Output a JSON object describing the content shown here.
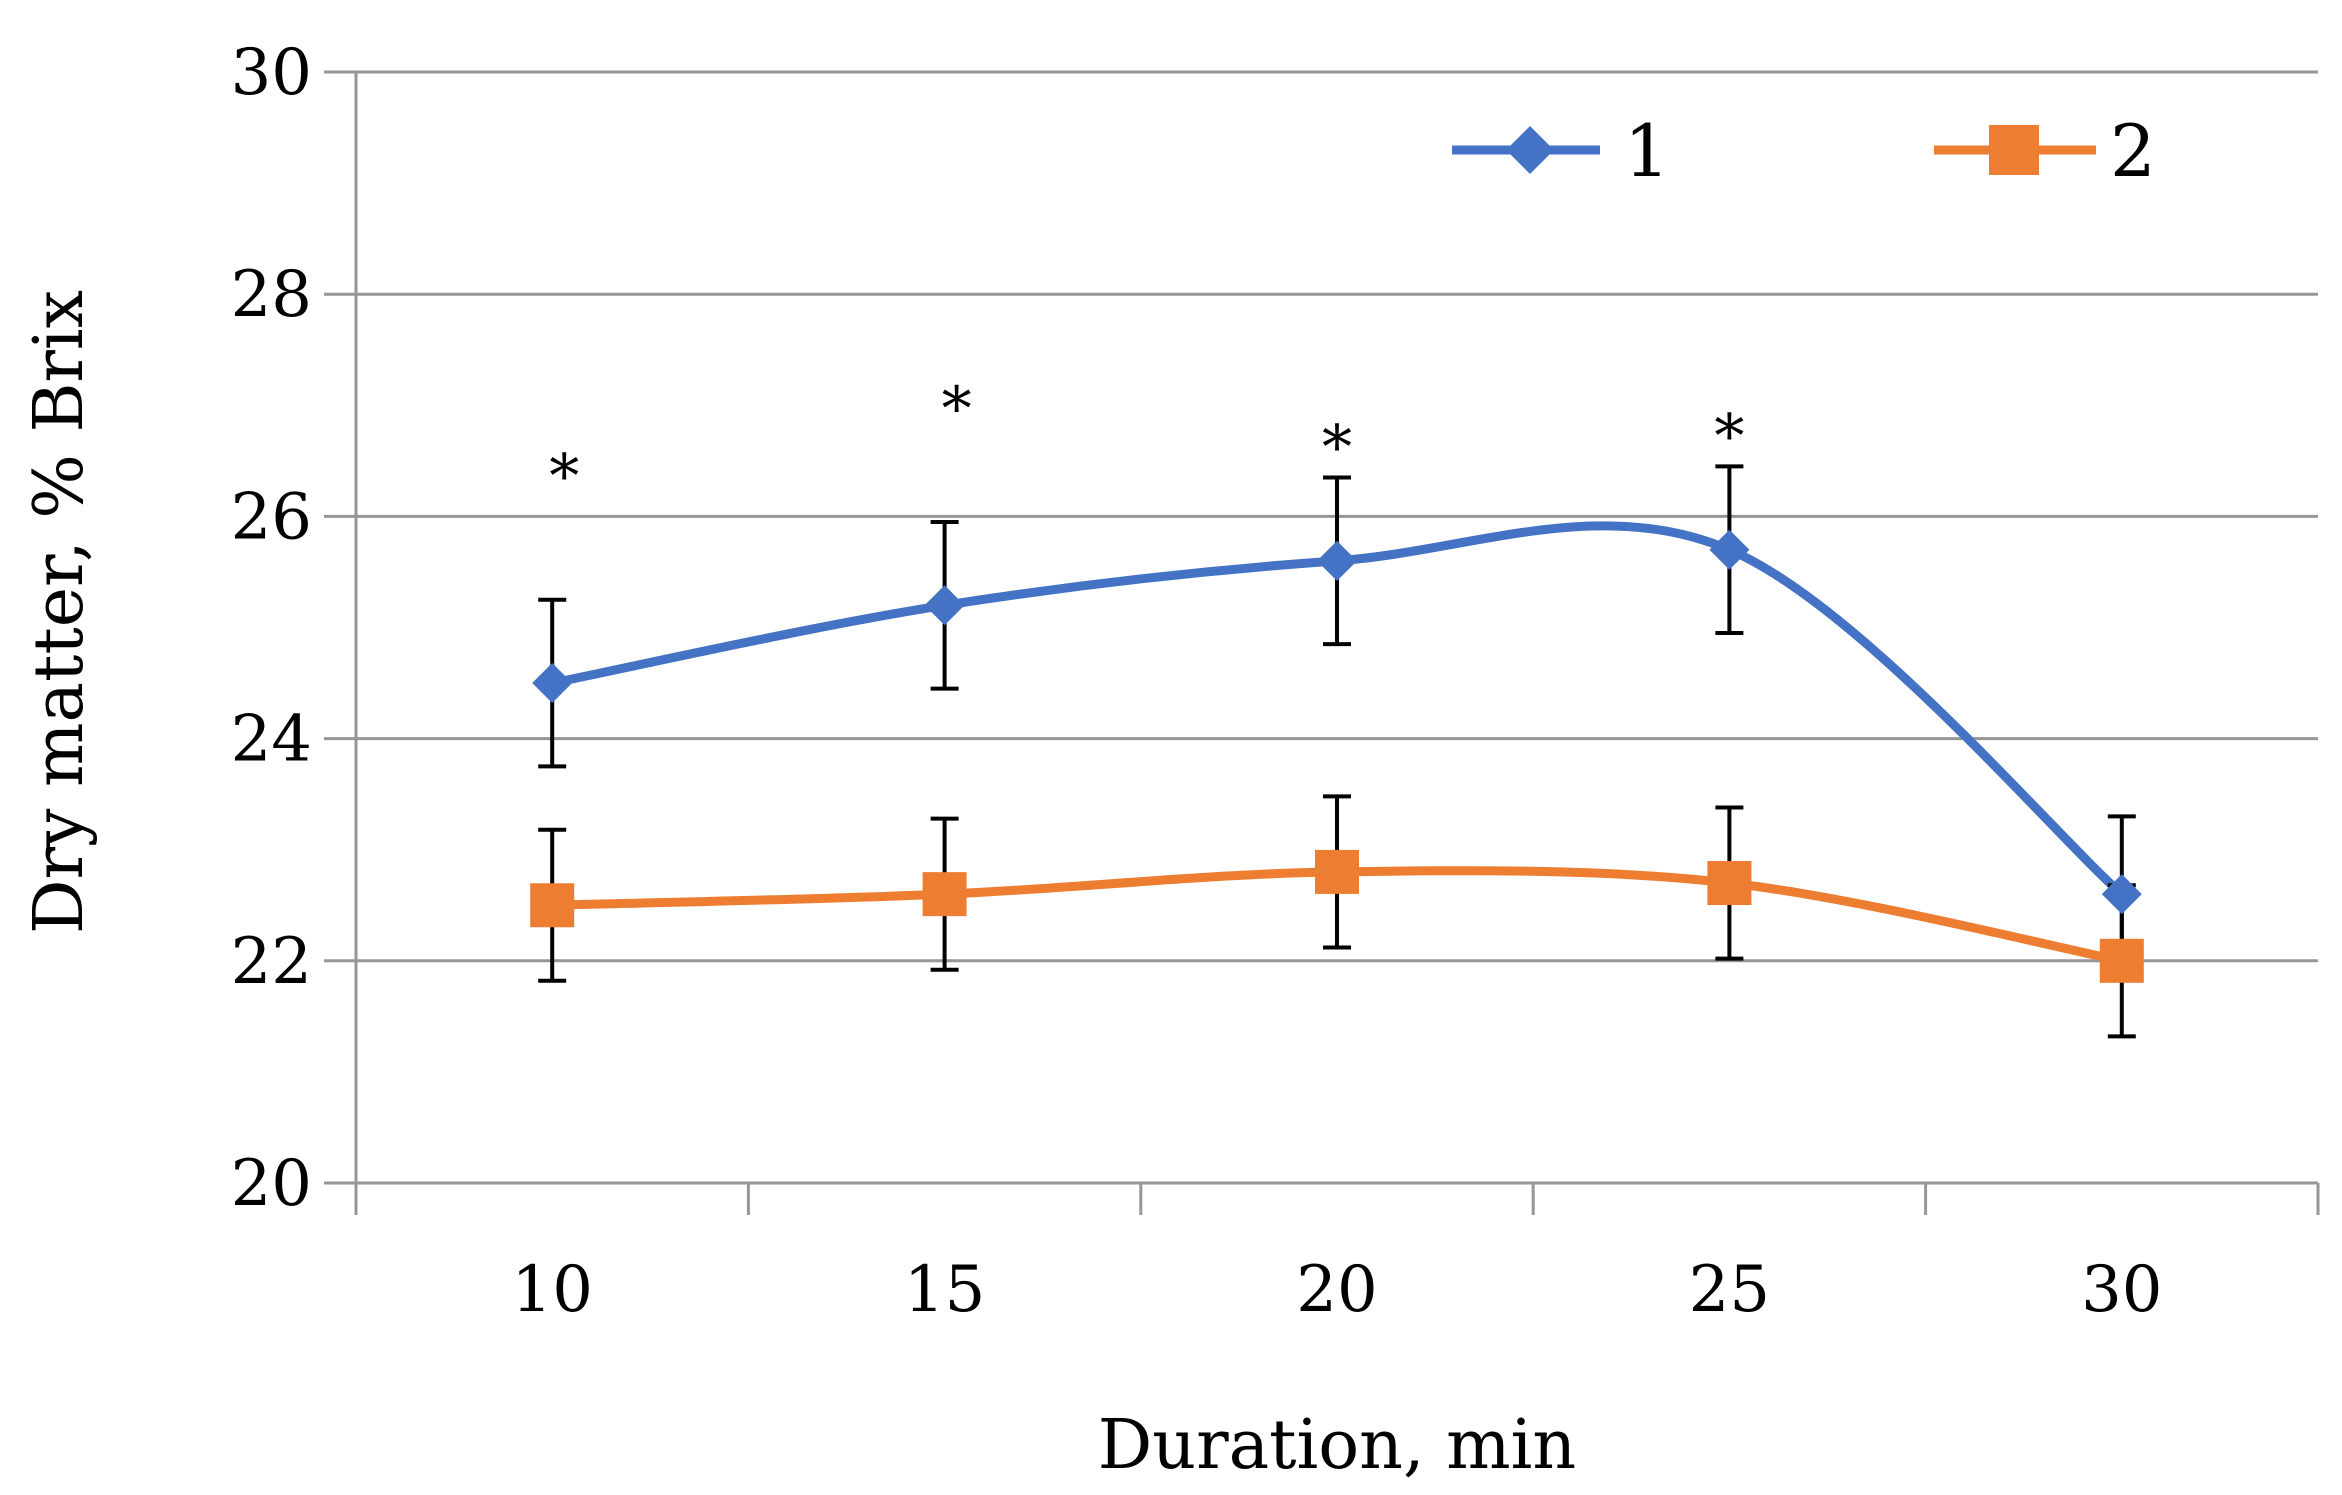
{
  "chart_data": {
    "type": "line",
    "title": "",
    "xlabel": "Duration,  min",
    "ylabel": "Dry matter, % Brix",
    "categories": [
      "10",
      "15",
      "20",
      "25",
      "30"
    ],
    "ylim": [
      20,
      30
    ],
    "yticks": [
      "20",
      "22",
      "24",
      "26",
      "28",
      "30"
    ],
    "grid": true,
    "legend_position": "top-right",
    "series": [
      {
        "name": "1",
        "color": "#4472C4",
        "marker": "diamond",
        "values": [
          24.5,
          25.2,
          25.6,
          25.7,
          22.6
        ],
        "errors": [
          0.75,
          0.75,
          0.75,
          0.75,
          0.7
        ]
      },
      {
        "name": "2",
        "color": "#ED7D31",
        "marker": "square",
        "values": [
          22.5,
          22.6,
          22.8,
          22.7,
          22.0
        ],
        "errors": [
          0.68,
          0.68,
          0.68,
          0.68,
          0.68
        ]
      }
    ],
    "annotations": [
      {
        "category": "10",
        "text": "*"
      },
      {
        "category": "15",
        "text": "*"
      },
      {
        "category": "20",
        "text": "*"
      },
      {
        "category": "25",
        "text": "*"
      }
    ]
  }
}
